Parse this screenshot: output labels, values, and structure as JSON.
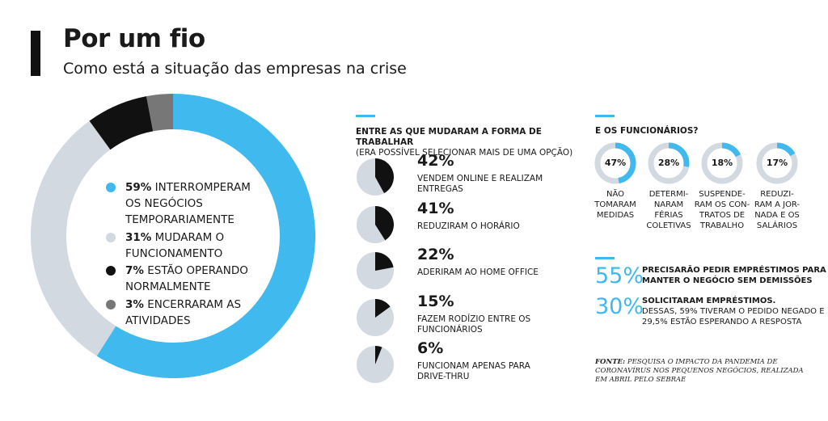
{
  "header": {
    "title": "Por um fio",
    "subtitle": "Como está a situação das empresas na crise"
  },
  "colors": {
    "blue": "#3fb9ee",
    "light_gray": "#d3d9e1",
    "black": "#111111",
    "dark_gray": "#777777",
    "pie_bg": "#d3d9e1"
  },
  "chart_data": [
    {
      "type": "pie",
      "variant": "donut",
      "slices": [
        {
          "pct_label": "59%",
          "label": "INTERROMPERAM OS NEGÓCIOS TEMPORARIAMENTE",
          "value": 59,
          "color": "#3fb9ee"
        },
        {
          "pct_label": "31%",
          "label": "MUDARAM O FUNCIONAMENTO",
          "value": 31,
          "color": "#d3d9e1"
        },
        {
          "pct_label": "7%",
          "label": "ESTÃO OPERANDO NORMALMENTE",
          "value": 7,
          "color": "#111111"
        },
        {
          "pct_label": "3%",
          "label": "ENCERRARAM AS ATIVIDADES",
          "value": 3,
          "color": "#777777"
        }
      ]
    },
    {
      "type": "pie",
      "title": "ENTRE AS QUE MUDARAM A FORMA DE TRABALHAR",
      "subtitle": "(ERA POSSÍVEL SELECIONAR MAIS DE UMA OPÇÃO)",
      "items": [
        {
          "pct_label": "42%",
          "value": 42,
          "label": "VENDEM ONLINE E REALIZAM ENTREGAS"
        },
        {
          "pct_label": "41%",
          "value": 41,
          "label": "REDUZIRAM O HORÁRIO"
        },
        {
          "pct_label": "22%",
          "value": 22,
          "label": "ADERIRAM AO HOME OFFICE"
        },
        {
          "pct_label": "15%",
          "value": 15,
          "label": "FAZEM RODÍZIO ENTRE OS FUNCIONÁRIOS"
        },
        {
          "pct_label": "6%",
          "value": 6,
          "label": "FUNCIONAM APENAS PARA DRIVE-THRU"
        }
      ]
    },
    {
      "type": "pie",
      "variant": "ring",
      "title": "E OS FUNCIONÁRIOS?",
      "items": [
        {
          "pct_label": "47%",
          "value": 47,
          "label": "NÃO TOMARAM MEDIDAS"
        },
        {
          "pct_label": "28%",
          "value": 28,
          "label": "DETERMI-NARAM FÉRIAS COLETIVAS"
        },
        {
          "pct_label": "18%",
          "value": 18,
          "label": "SUSPENDE-RAM OS CON-TRATOS DE TRABALHO"
        },
        {
          "pct_label": "17%",
          "value": 17,
          "label": "REDUZI-RAM A JOR-NADA E OS SALÁRIOS"
        }
      ]
    }
  ],
  "emp_desc_lines": [
    [
      "NÃO",
      "TOMARAM",
      "MEDIDAS"
    ],
    [
      "DETERMI-",
      "NARAM",
      "FÉRIAS",
      "COLETIVAS"
    ],
    [
      "SUSPENDE-",
      "RAM OS CON-",
      "TRATOS DE",
      "TRABALHO"
    ],
    [
      "REDUZI-",
      "RAM A JOR-",
      "NADA E OS",
      "SALÁRIOS"
    ]
  ],
  "loans": [
    {
      "big": "55%",
      "bold": "PRECISARÃO PEDIR EMPRÉSTIMOS PARA MANTER O NEGÓCIO SEM DEMISSÕES",
      "rest": ""
    },
    {
      "big": "30%",
      "bold": "SOLICITARAM EMPRÉSTIMOS.",
      "rest": "DESSAS, 59% TIVERAM O PEDIDO NEGADO E 29,5% ESTÃO ESPERANDO A RESPOSTA"
    }
  ],
  "source": {
    "label": "FONTE:",
    "text": "PESQUISA O IMPACTO DA PANDEMIA DE CORONAVÍRUS NOS PEQUENOS NEGÓCIOS, REALIZADA EM ABRIL PELO SEBRAE"
  }
}
